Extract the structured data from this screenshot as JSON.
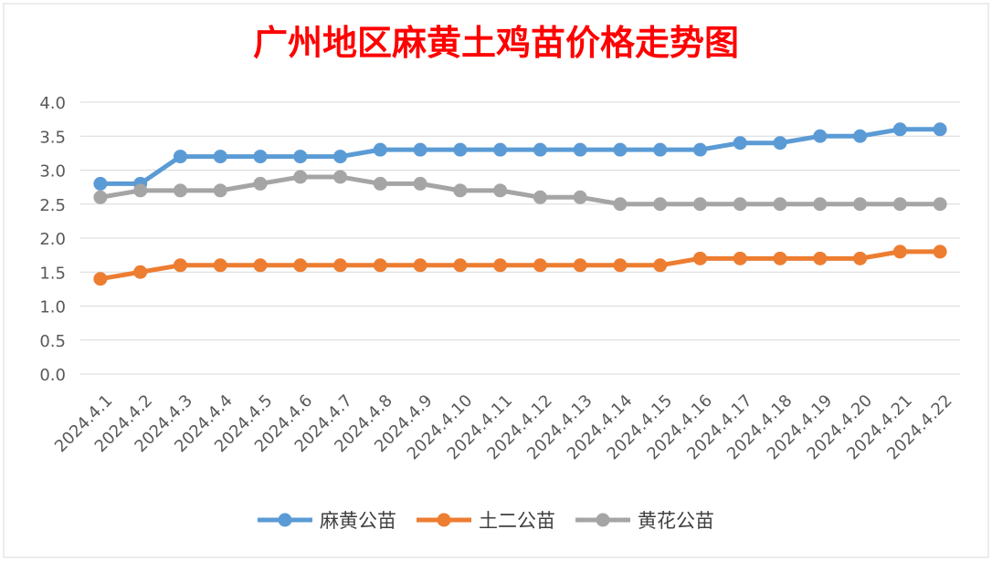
{
  "chart_data": {
    "type": "line",
    "title": "广州地区麻黄土鸡苗价格走势图",
    "xlabel": "",
    "ylabel": "",
    "ylim": [
      0.0,
      4.0
    ],
    "yticks": [
      "0.0",
      "0.5",
      "1.0",
      "1.5",
      "2.0",
      "2.5",
      "3.0",
      "3.5",
      "4.0"
    ],
    "grid": true,
    "legend_position": "bottom",
    "categories": [
      "2024.4.1",
      "2024.4.2",
      "2024.4.3",
      "2024.4.4",
      "2024.4.5",
      "2024.4.6",
      "2024.4.7",
      "2024.4.8",
      "2024.4.9",
      "2024.4.10",
      "2024.4.11",
      "2024.4.12",
      "2024.4.13",
      "2024.4.14",
      "2024.4.15",
      "2024.4.16",
      "2024.4.17",
      "2024.4.18",
      "2024.4.19",
      "2024.4.20",
      "2024.4.21",
      "2024.4.22"
    ],
    "series": [
      {
        "name": "麻黄公苗",
        "color": "#5b9bd5",
        "values": [
          2.8,
          2.8,
          3.2,
          3.2,
          3.2,
          3.2,
          3.2,
          3.3,
          3.3,
          3.3,
          3.3,
          3.3,
          3.3,
          3.3,
          3.3,
          3.3,
          3.4,
          3.4,
          3.5,
          3.5,
          3.6,
          3.6
        ]
      },
      {
        "name": "土二公苗",
        "color": "#ed7d31",
        "values": [
          1.4,
          1.5,
          1.6,
          1.6,
          1.6,
          1.6,
          1.6,
          1.6,
          1.6,
          1.6,
          1.6,
          1.6,
          1.6,
          1.6,
          1.6,
          1.7,
          1.7,
          1.7,
          1.7,
          1.7,
          1.8,
          1.8
        ]
      },
      {
        "name": "黄花公苗",
        "color": "#a5a5a5",
        "values": [
          2.6,
          2.7,
          2.7,
          2.7,
          2.8,
          2.9,
          2.9,
          2.8,
          2.8,
          2.7,
          2.7,
          2.6,
          2.6,
          2.5,
          2.5,
          2.5,
          2.5,
          2.5,
          2.5,
          2.5,
          2.5,
          2.5
        ]
      }
    ]
  }
}
